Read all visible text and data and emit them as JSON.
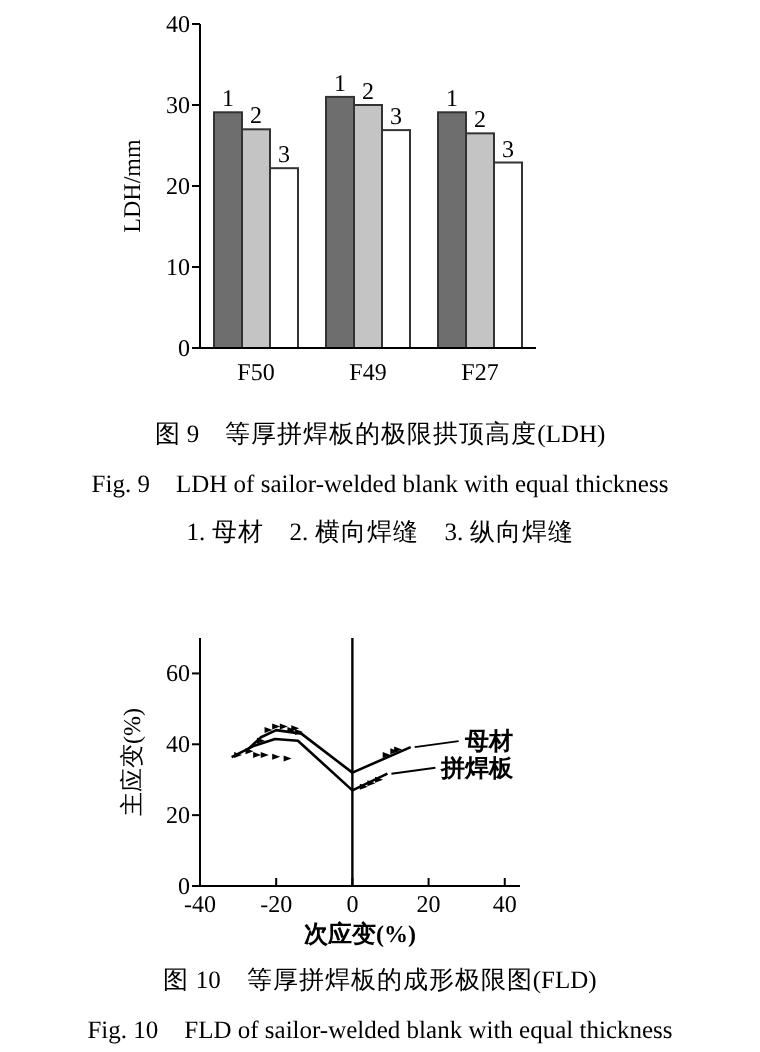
{
  "chart_data": [
    {
      "type": "bar",
      "title": "图 9　等厚拼焊板的极限拱顶高度(LDH)",
      "subtitle": "Fig. 9　LDH of sailor-welded blank with equal thickness",
      "annotations": [
        "1. 母材　2. 横向焊缝　3. 纵向焊缝"
      ],
      "ylabel": "LDH/mm",
      "categories": [
        "F50",
        "F49",
        "F27"
      ],
      "ylim": [
        0,
        40
      ],
      "yticks": [
        0,
        10,
        20,
        30,
        40
      ],
      "series": [
        {
          "name": "1",
          "color": "#6e6e6e",
          "values": [
            29.1,
            31.0,
            29.1
          ]
        },
        {
          "name": "2",
          "color": "#c4c4c4",
          "values": [
            27.0,
            30.0,
            26.5
          ]
        },
        {
          "name": "3",
          "color": "#ffffff",
          "values": [
            22.2,
            26.9,
            22.9
          ]
        }
      ]
    },
    {
      "type": "line",
      "title": "图 10　等厚拼焊板的成形极限图(FLD)",
      "subtitle": "Fig. 10　FLD of sailor-welded blank with equal thickness",
      "xlabel": "次应变(%)",
      "ylabel": "主应变(%)",
      "xlim": [
        -40,
        44
      ],
      "ylim": [
        0,
        70
      ],
      "xticks": [
        -40,
        -20,
        0,
        20,
        40
      ],
      "yticks": [
        0,
        20,
        40,
        60
      ],
      "marker": "none",
      "line_style": "solid",
      "legend": "right",
      "ref_lines": [
        {
          "axis": "x",
          "value": 0
        }
      ],
      "series": [
        {
          "name": "母材",
          "color": "#000000",
          "x": [
            -28,
            -24,
            -20,
            -13.4,
            0,
            15.3
          ],
          "values": [
            38,
            42,
            44,
            43,
            32,
            39.2
          ]
        },
        {
          "name": "拼焊板",
          "color": "#000000",
          "x": [
            -31.7,
            -26,
            -20.3,
            -14.3,
            0,
            9.2
          ],
          "values": [
            36.4,
            39.5,
            41.5,
            41,
            27,
            31.7
          ]
        },
        {
          "type": "scatter",
          "marker": "triangle",
          "color": "#000000",
          "x": [
            -30,
            -27,
            -25,
            -23,
            -20,
            -17,
            -24,
            -22,
            -20,
            -18,
            -16,
            -14,
            -15,
            3,
            5,
            7,
            9,
            11,
            12
          ],
          "values": [
            37,
            38,
            37,
            37,
            36.5,
            36,
            41,
            44,
            45,
            45,
            44,
            43.5,
            44.5,
            28,
            29,
            30,
            37,
            38,
            38.5
          ]
        }
      ]
    }
  ]
}
